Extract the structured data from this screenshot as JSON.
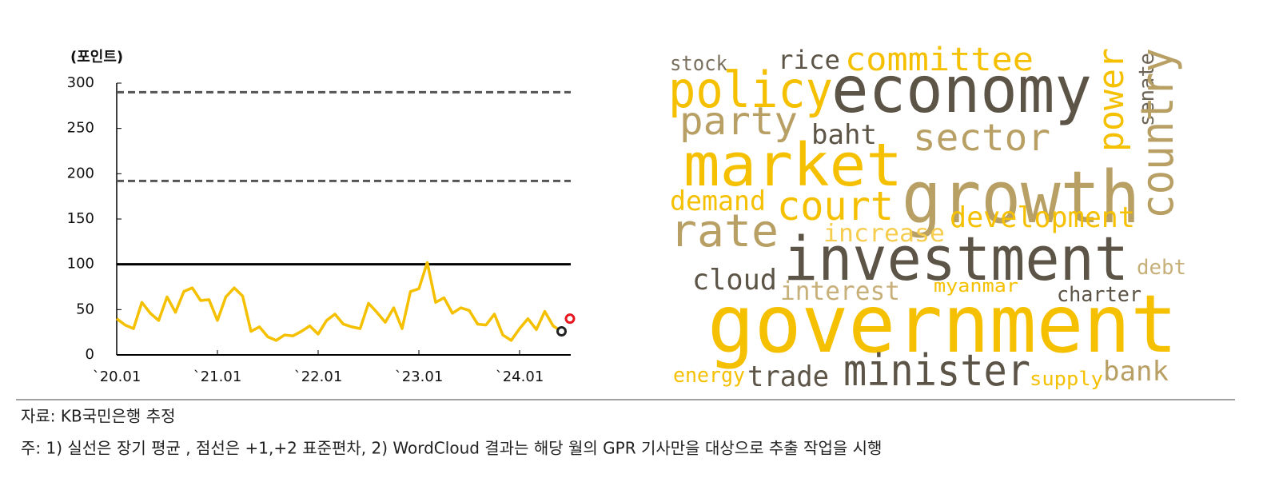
{
  "chart_data": [
    {
      "type": "line",
      "y_label": "(포인트)",
      "categories": [
        "`20.01",
        null,
        null,
        null,
        null,
        null,
        null,
        null,
        null,
        null,
        null,
        null,
        "`21.01",
        null,
        null,
        null,
        null,
        null,
        null,
        null,
        null,
        null,
        null,
        null,
        "`22.01",
        null,
        null,
        null,
        null,
        null,
        null,
        null,
        null,
        null,
        null,
        null,
        "`23.01",
        null,
        null,
        null,
        null,
        null,
        null,
        null,
        null,
        null,
        null,
        null,
        "`24.01",
        null,
        null,
        null,
        null,
        null,
        null
      ],
      "series": [
        {
          "color": "#f5c000",
          "style": "line",
          "values": [
            40,
            33,
            29,
            58,
            46,
            38,
            64,
            47,
            70,
            74,
            60,
            61,
            38,
            64,
            74,
            65,
            26,
            31,
            20,
            16,
            22,
            21,
            26,
            32,
            23,
            38,
            45,
            34,
            31,
            29,
            57,
            47,
            36,
            52,
            29,
            70,
            73,
            102,
            58,
            63,
            46,
            52,
            49,
            34,
            33,
            45,
            22,
            16,
            29,
            40,
            28,
            48,
            32,
            26,
            null
          ]
        },
        {
          "color": "#222222",
          "style": "marker",
          "values": [
            null,
            null,
            null,
            null,
            null,
            null,
            null,
            null,
            null,
            null,
            null,
            null,
            null,
            null,
            null,
            null,
            null,
            null,
            null,
            null,
            null,
            null,
            null,
            null,
            null,
            null,
            null,
            null,
            null,
            null,
            null,
            null,
            null,
            null,
            null,
            null,
            null,
            null,
            null,
            null,
            null,
            null,
            null,
            null,
            null,
            null,
            null,
            null,
            null,
            null,
            null,
            null,
            null,
            26,
            null
          ]
        },
        {
          "color": "#e8141e",
          "style": "marker",
          "values": [
            null,
            null,
            null,
            null,
            null,
            null,
            null,
            null,
            null,
            null,
            null,
            null,
            null,
            null,
            null,
            null,
            null,
            null,
            null,
            null,
            null,
            null,
            null,
            null,
            null,
            null,
            null,
            null,
            null,
            null,
            null,
            null,
            null,
            null,
            null,
            null,
            null,
            null,
            null,
            null,
            null,
            null,
            null,
            null,
            null,
            null,
            null,
            null,
            null,
            null,
            null,
            null,
            null,
            null,
            40
          ]
        }
      ],
      "hlines": [
        {
          "value": 290,
          "style": "dashed"
        },
        {
          "value": 192,
          "style": "dashed"
        },
        {
          "value": 100,
          "style": "solid"
        }
      ],
      "ylim": [
        0,
        300
      ],
      "yticks": [
        0,
        50,
        100,
        150,
        200,
        250,
        300
      ]
    },
    {
      "type": "wordcloud",
      "words": [
        {
          "text": "stock",
          "color": "#7a705e"
        },
        {
          "text": "rice",
          "color": "#5c5446"
        },
        {
          "text": "committee",
          "color": "#f5c000"
        },
        {
          "text": "policy",
          "color": "#f5c000"
        },
        {
          "text": "economy",
          "color": "#5c5446"
        },
        {
          "text": "party",
          "color": "#b89f63"
        },
        {
          "text": "baht",
          "color": "#5c5446"
        },
        {
          "text": "sector",
          "color": "#b89f63"
        },
        {
          "text": "power",
          "color": "#f5c000"
        },
        {
          "text": "senate",
          "color": "#6e6556"
        },
        {
          "text": "country",
          "color": "#b89f63"
        },
        {
          "text": "market",
          "color": "#f5c000"
        },
        {
          "text": "growth",
          "color": "#b89f63"
        },
        {
          "text": "demand",
          "color": "#f5c000"
        },
        {
          "text": "court",
          "color": "#f5c000"
        },
        {
          "text": "development",
          "color": "#f5c000"
        },
        {
          "text": "rate",
          "color": "#b89f63"
        },
        {
          "text": "increase",
          "color": "#f6cd4e"
        },
        {
          "text": "investment",
          "color": "#5c5446"
        },
        {
          "text": "debt",
          "color": "#c8b07a"
        },
        {
          "text": "cloud",
          "color": "#5c5446"
        },
        {
          "text": "interest",
          "color": "#c8b07a"
        },
        {
          "text": "myanmar",
          "color": "#f5c000"
        },
        {
          "text": "charter",
          "color": "#5c5446"
        },
        {
          "text": "government",
          "color": "#f5c000"
        },
        {
          "text": "energy",
          "color": "#f5c000"
        },
        {
          "text": "trade",
          "color": "#5c5446"
        },
        {
          "text": "minister",
          "color": "#5c5446"
        },
        {
          "text": "supply",
          "color": "#f5c000"
        },
        {
          "text": "bank",
          "color": "#b89f63"
        }
      ]
    }
  ],
  "notes": [
    "자료: KB국민은행 추정",
    "주: 1) 실선은 장기 평균 , 점선은 +1,+2 표준편차, 2) WordCloud 결과는 해당 월의 GPR 기사만을 대상으로 추출 작업을 시행"
  ]
}
